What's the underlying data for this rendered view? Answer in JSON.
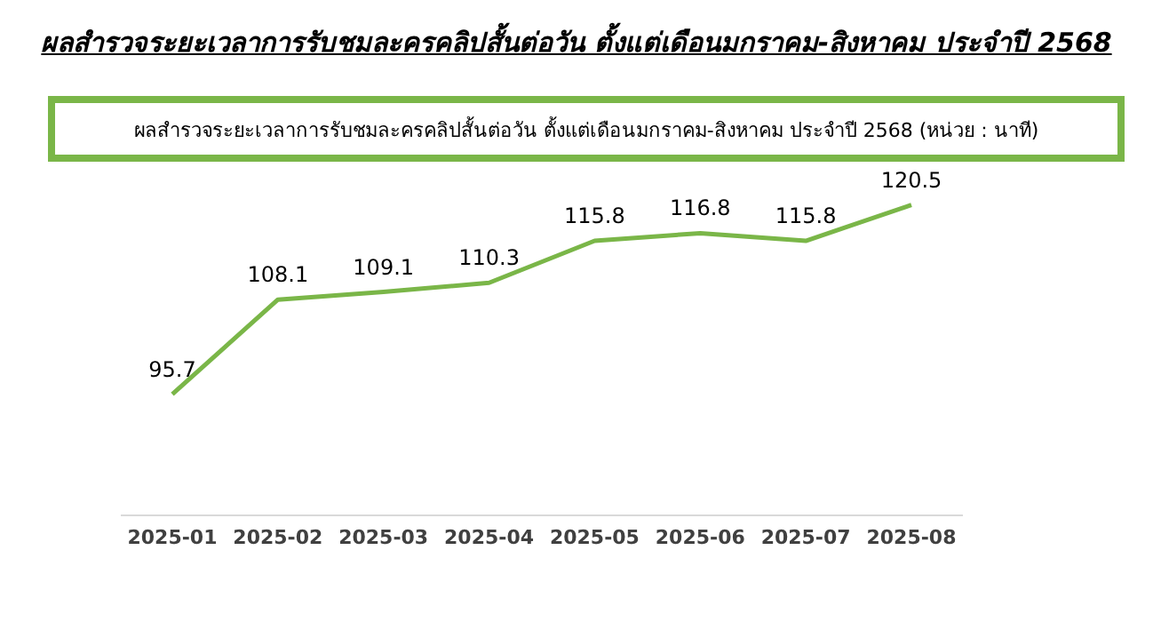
{
  "chart_data": {
    "type": "line",
    "title": "ผลสำรวจระยะเวลาการรับชมละครคลิปสั้นต่อวัน ตั้งแต่เดือนมกราคม-สิงหาคม ประจำปี 2568",
    "subtitle": "ผลสำรวจระยะเวลาการรับชมละครคลิปสั้นต่อวัน ตั้งแต่เดือนมกราคม-สิงหาคม ประจำปี 2568 (หน่วย : นาที)",
    "categories": [
      "2025-01",
      "2025-02",
      "2025-03",
      "2025-04",
      "2025-05",
      "2025-06",
      "2025-07",
      "2025-08"
    ],
    "series": [
      {
        "color": "#7ab648",
        "values": [
          95.7,
          108.1,
          109.1,
          110.3,
          115.8,
          116.8,
          115.8,
          120.5
        ]
      }
    ],
    "data_labels": true,
    "grid": false,
    "legend": false,
    "marker": "none",
    "line_style": "solid",
    "tick_labels": "x"
  }
}
